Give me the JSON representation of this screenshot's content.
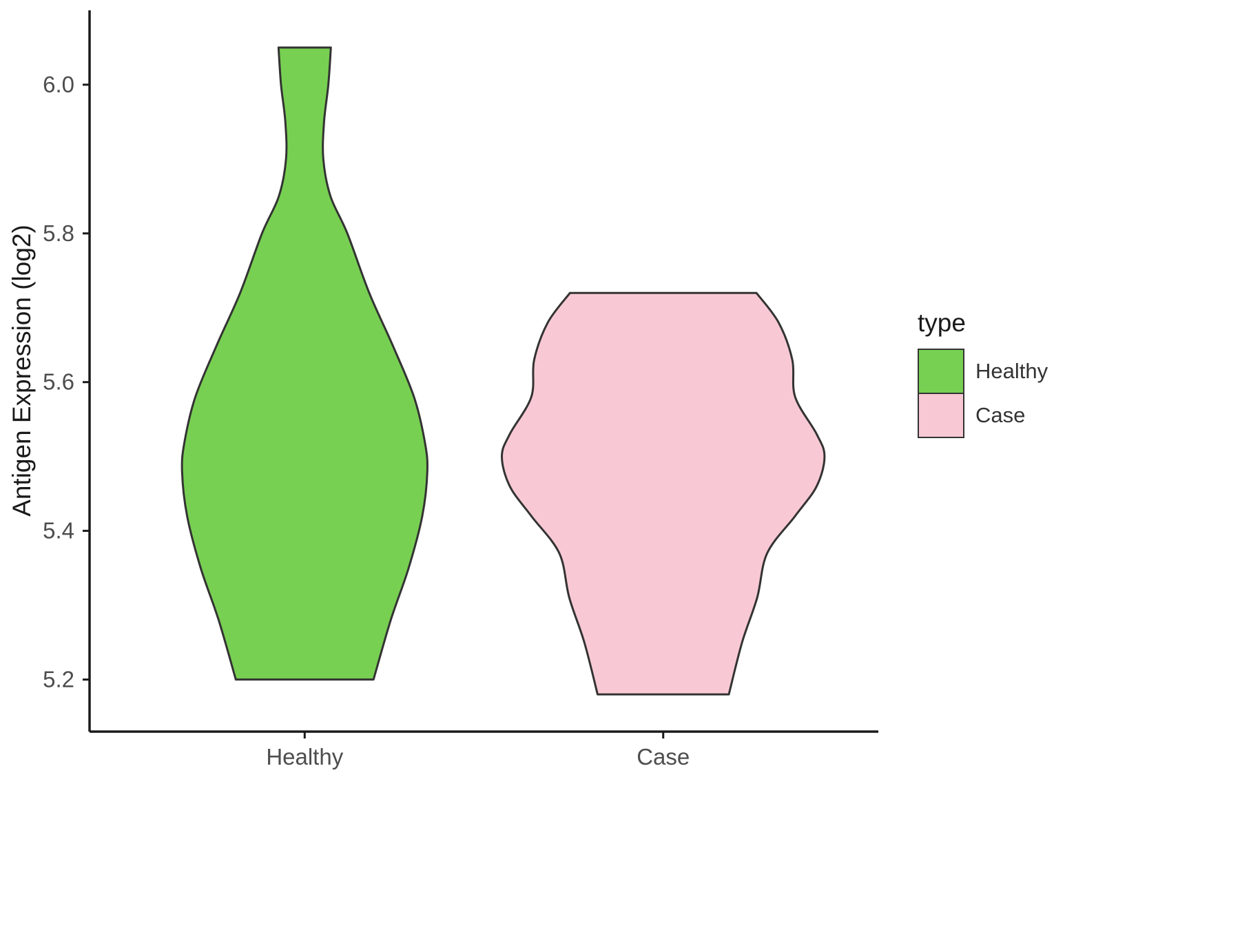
{
  "figure": {
    "background": "#ffffff",
    "axis_color": "#1a1a1a",
    "outline_color": "#333333",
    "tick_text_color": "#4d4d4d"
  },
  "chart_data": {
    "type": "violin",
    "title": "",
    "xlabel": "",
    "ylabel": "Antigen Expression (log2)",
    "categories": [
      "Healthy",
      "Case"
    ],
    "yticks": [
      5.2,
      5.4,
      5.6,
      5.8,
      6.0
    ],
    "ylim": [
      5.13,
      6.1
    ],
    "xlim": [
      0.4,
      2.6
    ],
    "grid": false,
    "legend": {
      "title": "type",
      "position": "right",
      "entries": [
        "Healthy",
        "Case"
      ]
    },
    "series": [
      {
        "name": "Healthy",
        "fill": "#78d052",
        "stroke": "#333333",
        "x": 1,
        "range": [
          5.2,
          6.05
        ],
        "profile": [
          {
            "v": 6.05,
            "w": 0.073
          },
          {
            "v": 6.0,
            "w": 0.066
          },
          {
            "v": 5.95,
            "w": 0.054
          },
          {
            "v": 5.9,
            "w": 0.052
          },
          {
            "v": 5.85,
            "w": 0.072
          },
          {
            "v": 5.8,
            "w": 0.119
          },
          {
            "v": 5.72,
            "w": 0.18
          },
          {
            "v": 5.65,
            "w": 0.245
          },
          {
            "v": 5.58,
            "w": 0.305
          },
          {
            "v": 5.52,
            "w": 0.335
          },
          {
            "v": 5.48,
            "w": 0.342
          },
          {
            "v": 5.42,
            "w": 0.328
          },
          {
            "v": 5.35,
            "w": 0.29
          },
          {
            "v": 5.28,
            "w": 0.24
          },
          {
            "v": 5.2,
            "w": 0.192
          }
        ]
      },
      {
        "name": "Case",
        "fill": "#f8c9d4",
        "stroke": "#333333",
        "x": 2,
        "range": [
          5.18,
          5.72
        ],
        "profile": [
          {
            "v": 5.72,
            "w": 0.26
          },
          {
            "v": 5.68,
            "w": 0.322
          },
          {
            "v": 5.63,
            "w": 0.36
          },
          {
            "v": 5.58,
            "w": 0.368
          },
          {
            "v": 5.53,
            "w": 0.428
          },
          {
            "v": 5.5,
            "w": 0.45
          },
          {
            "v": 5.46,
            "w": 0.428
          },
          {
            "v": 5.42,
            "w": 0.368
          },
          {
            "v": 5.37,
            "w": 0.29
          },
          {
            "v": 5.31,
            "w": 0.262
          },
          {
            "v": 5.25,
            "w": 0.22
          },
          {
            "v": 5.18,
            "w": 0.183
          }
        ]
      }
    ]
  }
}
